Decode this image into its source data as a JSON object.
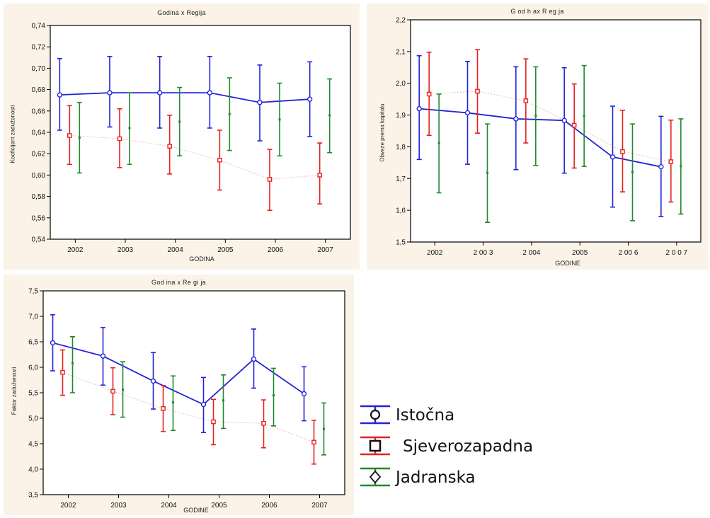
{
  "colors": {
    "istocna": "#2323d8",
    "sjeverozapadna": "#e52222",
    "jadranska": "#1f8a2a",
    "panel_bg": "#fbf3e8"
  },
  "legend": {
    "items": [
      {
        "label": "Istočna",
        "color": "#2323d8",
        "marker": "circle"
      },
      {
        "label": "Sjeverozapadna",
        "color": "#e52222",
        "marker": "square"
      },
      {
        "label": "Jadranska",
        "color": "#1f8a2a",
        "marker": "diamond"
      }
    ]
  },
  "chart_data": [
    {
      "type": "line",
      "title": "Godina x Regija",
      "xlabel": "GODINA",
      "ylabel": "Koeficijent zaduženosti",
      "categories": [
        "2002",
        "2003",
        "2004",
        "2005",
        "2006",
        "2007"
      ],
      "ylim": [
        0.54,
        0.74
      ],
      "yticks": [
        "0,54",
        "0,56",
        "0,58",
        "0,60",
        "0,62",
        "0,64",
        "0,66",
        "0,68",
        "0,70",
        "0,72",
        "0,74"
      ],
      "grid": false,
      "series": [
        {
          "name": "Istočna",
          "values": [
            0.675,
            0.677,
            0.677,
            0.677,
            0.668,
            0.671
          ],
          "low": [
            0.642,
            0.645,
            0.644,
            0.644,
            0.632,
            0.636
          ],
          "high": [
            0.709,
            0.711,
            0.711,
            0.711,
            0.703,
            0.706
          ]
        },
        {
          "name": "Sjeverozapadna",
          "values": [
            0.637,
            0.634,
            0.627,
            0.614,
            0.596,
            0.6
          ],
          "low": [
            0.61,
            0.607,
            0.601,
            0.586,
            0.567,
            0.573
          ],
          "high": [
            0.665,
            0.662,
            0.656,
            0.642,
            0.624,
            0.63
          ]
        },
        {
          "name": "Jadranska",
          "values": [
            0.635,
            0.644,
            0.65,
            0.657,
            0.652,
            0.656
          ],
          "low": [
            0.602,
            0.61,
            0.618,
            0.623,
            0.618,
            0.621
          ],
          "high": [
            0.668,
            0.677,
            0.682,
            0.691,
            0.686,
            0.69
          ]
        }
      ]
    },
    {
      "type": "line",
      "title": "G od h ax R eg ja",
      "xlabel": "GODINE",
      "ylabel": "Obveze prema kapitalu",
      "categories": [
        "2002",
        "2 00 3",
        "2 004",
        "2005",
        "2 00 6",
        "2 0 0 7"
      ],
      "ylim": [
        1.5,
        2.2
      ],
      "yticks": [
        "1,5",
        "1,6",
        "1,7",
        "1,8",
        "1,9",
        "2,0",
        "2,1",
        "2,2"
      ],
      "grid": false,
      "series": [
        {
          "name": "Istočna",
          "values": [
            1.92,
            1.907,
            1.888,
            1.883,
            1.768,
            1.737
          ],
          "low": [
            1.76,
            1.745,
            1.728,
            1.717,
            1.61,
            1.58
          ],
          "high": [
            2.087,
            2.069,
            2.052,
            2.049,
            1.928,
            1.896
          ]
        },
        {
          "name": "Sjeverozapadna",
          "values": [
            1.966,
            1.975,
            1.945,
            1.868,
            1.785,
            1.753
          ],
          "low": [
            1.836,
            1.843,
            1.812,
            1.733,
            1.658,
            1.626
          ],
          "high": [
            2.098,
            2.106,
            2.077,
            1.998,
            1.915,
            1.884
          ]
        },
        {
          "name": "Jadranska",
          "values": [
            1.812,
            1.718,
            1.898,
            1.898,
            1.72,
            1.739
          ],
          "low": [
            1.655,
            1.562,
            1.741,
            1.738,
            1.567,
            1.588
          ],
          "high": [
            1.966,
            1.872,
            2.052,
            2.056,
            1.872,
            1.888
          ]
        }
      ]
    },
    {
      "type": "line",
      "title": "God ina x Re gi ja",
      "xlabel": "GODINE",
      "ylabel": "Faktor zaduženosti",
      "categories": [
        "2002",
        "2003",
        "2004",
        "2005",
        "2006",
        "2007"
      ],
      "ylim": [
        3.5,
        7.5
      ],
      "yticks": [
        "3,5",
        "4,0",
        "4,5",
        "5,0",
        "5,5",
        "6,0",
        "6,5",
        "7,0",
        "7,5"
      ],
      "grid": false,
      "series": [
        {
          "name": "Istočna",
          "values": [
            6.48,
            6.22,
            5.73,
            5.27,
            6.16,
            5.48
          ],
          "low": [
            5.93,
            5.65,
            5.18,
            4.72,
            5.59,
            4.95
          ],
          "high": [
            7.03,
            6.78,
            6.29,
            5.8,
            6.75,
            6.01
          ]
        },
        {
          "name": "Sjeverozapadna",
          "values": [
            5.9,
            5.53,
            5.19,
            4.93,
            4.9,
            4.53
          ],
          "low": [
            5.45,
            5.07,
            4.74,
            4.48,
            4.42,
            4.1
          ],
          "high": [
            6.34,
            5.99,
            5.64,
            5.37,
            5.36,
            4.96
          ]
        },
        {
          "name": "Jadranska",
          "values": [
            6.08,
            5.56,
            5.31,
            5.35,
            5.45,
            4.79
          ],
          "low": [
            5.5,
            5.02,
            4.76,
            4.8,
            4.85,
            4.28
          ],
          "high": [
            6.6,
            6.11,
            5.83,
            5.85,
            5.98,
            5.3
          ]
        }
      ]
    }
  ]
}
